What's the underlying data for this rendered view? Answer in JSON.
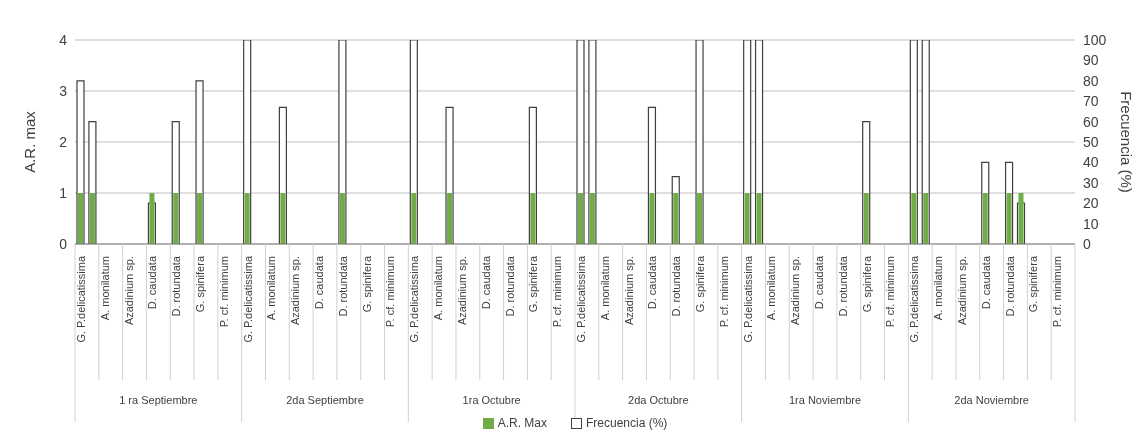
{
  "chart_data": {
    "type": "bar",
    "categories": [
      "G. P.delicatissima",
      null,
      "A.  monilatum",
      null,
      "Azadinium sp.",
      null,
      "D. caudata",
      null,
      "D. rotundata",
      null,
      "G. spinifera",
      null,
      "P. cf. minimum",
      null,
      "G. P.delicatissima",
      null,
      "A.  monilatum",
      null,
      "Azadinium sp.",
      null,
      "D. caudata",
      null,
      "D. rotundata",
      null,
      "G. spinifera",
      null,
      "P. cf. minimum",
      null,
      "G. P.delicatissima",
      null,
      "A.  monilatum",
      null,
      "Azadinium sp.",
      null,
      "D. caudata",
      null,
      "D. rotundata",
      null,
      "G. spinifera",
      null,
      "P. cf. minimum",
      null,
      "G. P.delicatissima",
      null,
      "A.  monilatum",
      null,
      "Azadinium sp.",
      null,
      "D. caudata",
      null,
      "D. rotundata",
      null,
      "G. spinifera",
      null,
      "P. cf. minimum",
      null,
      "G. P.delicatissima",
      null,
      "A.  monilatum",
      null,
      "Azadinium sp.",
      null,
      "D. caudata",
      null,
      "D. rotundata",
      null,
      "G. spinifera",
      null,
      "P. cf. minimum",
      null,
      "G. P.delicatissima",
      null,
      "A.  monilatum",
      null,
      "Azadinium sp.",
      null,
      "D. caudata",
      null,
      "D. rotundata",
      null,
      "G. spinifera",
      null,
      "P. cf. minimum",
      null
    ],
    "series": [
      {
        "name": "A.R. Max",
        "color": "#70ad47",
        "values": [
          1,
          1,
          null,
          null,
          null,
          null,
          1,
          null,
          1,
          null,
          1,
          null,
          null,
          null,
          1,
          null,
          null,
          1,
          null,
          null,
          null,
          null,
          1,
          null,
          null,
          null,
          null,
          null,
          1,
          null,
          null,
          1,
          null,
          null,
          null,
          null,
          null,
          null,
          1,
          null,
          null,
          null,
          1,
          1,
          null,
          null,
          null,
          null,
          1,
          null,
          1,
          null,
          1,
          null,
          null,
          null,
          1,
          1,
          null,
          null,
          null,
          null,
          null,
          null,
          null,
          null,
          1,
          null,
          null,
          null,
          1,
          1,
          null,
          null,
          null,
          null,
          1,
          null,
          1,
          1,
          null,
          null,
          null,
          null
        ]
      },
      {
        "name": "Frecuencia (%)",
        "color": "#ffffff",
        "axis": "y2",
        "values": [
          80,
          60,
          null,
          null,
          null,
          null,
          20,
          null,
          60,
          null,
          80,
          null,
          null,
          null,
          100,
          null,
          null,
          67,
          null,
          null,
          null,
          null,
          100,
          null,
          null,
          null,
          null,
          null,
          100,
          null,
          null,
          67,
          null,
          null,
          null,
          null,
          null,
          null,
          67,
          null,
          null,
          null,
          100,
          100,
          null,
          null,
          null,
          null,
          67,
          null,
          33,
          null,
          100,
          null,
          null,
          null,
          100,
          100,
          null,
          null,
          null,
          null,
          null,
          null,
          null,
          null,
          60,
          null,
          null,
          null,
          100,
          100,
          null,
          null,
          null,
          null,
          40,
          null,
          40,
          20,
          null,
          null,
          null,
          null
        ]
      }
    ],
    "ylabel": "A.R. max",
    "y2label": "Frecuencia (%)",
    "ylim": [
      0,
      4
    ],
    "yticks": [
      0,
      1,
      2,
      3,
      4
    ],
    "y2lim": [
      0,
      100
    ],
    "y2ticks": [
      0,
      10,
      20,
      30,
      40,
      50,
      60,
      70,
      80,
      90,
      100
    ],
    "annotations": [
      "1 ra Septiembre",
      "2da Septiembre",
      "1ra Octubre",
      "2da Octubre",
      "1ra Noviembre",
      "2da Noviembre"
    ],
    "grid": "y",
    "legend": "bottom"
  }
}
